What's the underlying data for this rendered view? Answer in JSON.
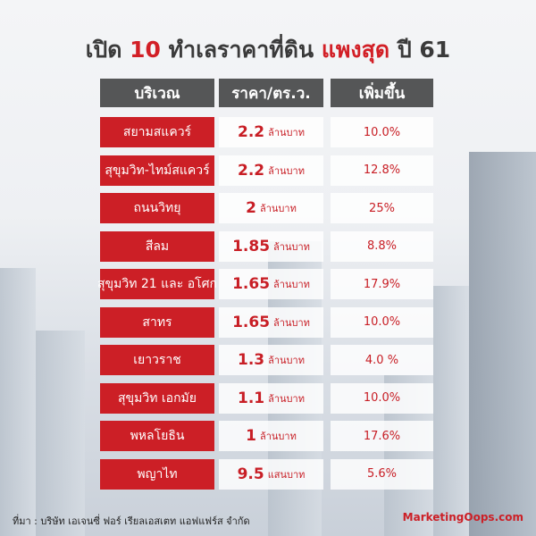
{
  "title": {
    "prefix": "เปิด",
    "number": "10",
    "middle": "ทำเลราคาที่ดิน",
    "highlight": "แพงสุด",
    "suffix": "ปี 61"
  },
  "table": {
    "headers": [
      "บริเวณ",
      "ราคา/ตร.ว.",
      "เพิ่มขึ้น"
    ],
    "rows": [
      [
        "สยามสแควร์",
        "2.2",
        "ล้านบาท",
        "10.0%"
      ],
      [
        "สุขุมวิท-ไทม์สแควร์",
        "2.2",
        "ล้านบาท",
        "12.8%"
      ],
      [
        "ถนนวิทยุ",
        "2",
        "ล้านบาท",
        "25%"
      ],
      [
        "สีลม",
        "1.85",
        "ล้านบาท",
        "8.8%"
      ],
      [
        "สุขุมวิท 21 และ อโศก",
        "1.65",
        "ล้านบาท",
        "17.9%"
      ],
      [
        "สาทร",
        "1.65",
        "ล้านบาท",
        "10.0%"
      ],
      [
        "เยาวราช",
        "1.3",
        "ล้านบาท",
        "4.0 %"
      ],
      [
        "สุขุมวิท เอกมัย",
        "1.1",
        "ล้านบาท",
        "10.0%"
      ],
      [
        "พหลโยธิน",
        "1",
        "ล้านบาท",
        "17.6%"
      ],
      [
        "พญาไท",
        "9.5",
        "แสนบาท",
        "5.6%"
      ]
    ]
  },
  "footer": {
    "source": "ที่มา : บริษัท เอเจนซี่ ฟอร์ เรียลเอสเตท แอฟแฟร์ส จำกัด",
    "brand": "MarketingOops.com"
  }
}
